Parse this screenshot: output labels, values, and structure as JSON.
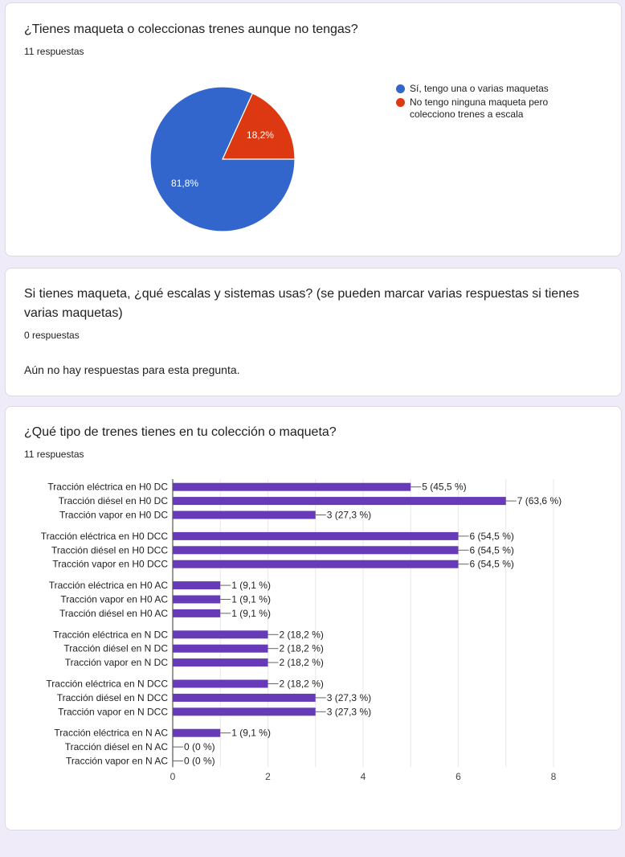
{
  "cards": [
    {
      "title": "¿Tienes maqueta o coleccionas trenes aunque no tengas?",
      "count": "11 respuestas"
    },
    {
      "title": "Si tienes maqueta, ¿qué escalas y sistemas usas? (se pueden marcar varias respuestas si tienes varias maquetas)",
      "count": "0 respuestas",
      "no_responses": "Aún no hay respuestas para esta pregunta."
    },
    {
      "title": "¿Qué tipo de trenes tienes en tu colección o maqueta?",
      "count": "11 respuestas"
    }
  ],
  "colors": {
    "blue": "#3366cc",
    "red": "#dc3912",
    "purple": "#673ab7",
    "grid": "#e8e8e8"
  },
  "chart_data": [
    {
      "type": "pie",
      "categories": [
        "Sí, tengo una o varias maquetas",
        "No tengo ninguna maqueta pero colecciono trenes a escala"
      ],
      "values": [
        81.8,
        18.2
      ],
      "data_labels": [
        "81,8%",
        "18,2%"
      ],
      "colors": [
        "#3366cc",
        "#dc3912"
      ],
      "legend": "right"
    },
    {
      "type": "bar",
      "orientation": "horizontal",
      "categories": [
        "Tracción eléctrica en H0 DC",
        "Tracción diésel en H0 DC",
        "Tracción vapor en H0 DC",
        "Tracción eléctrica en H0 DCC",
        "Tracción diésel en H0 DCC",
        "Tracción vapor en H0 DCC",
        "Tracción eléctrica en H0 AC",
        "Tracción vapor en H0 AC",
        "Tracción diésel en H0 AC",
        "Tracción eléctrica en N DC",
        "Tracción diésel en N DC",
        "Tracción vapor en N DC",
        "Tracción eléctrica en N DCC",
        "Tracción diésel en N DCC",
        "Tracción vapor en N DCC",
        "Tracción eléctrica en N AC",
        "Tracción diésel en N AC",
        "Tracción vapor en N AC"
      ],
      "values": [
        5,
        7,
        3,
        6,
        6,
        6,
        1,
        1,
        1,
        2,
        2,
        2,
        2,
        3,
        3,
        1,
        0,
        0
      ],
      "data_labels": [
        "5 (45,5 %)",
        "7 (63,6 %)",
        "3 (27,3 %)",
        "6 (54,5 %)",
        "6 (54,5 %)",
        "6 (54,5 %)",
        "1 (9,1 %)",
        "1 (9,1 %)",
        "1 (9,1 %)",
        "2 (18,2 %)",
        "2 (18,2 %)",
        "2 (18,2 %)",
        "2 (18,2 %)",
        "3 (27,3 %)",
        "3 (27,3 %)",
        "1 (9,1 %)",
        "0 (0 %)",
        "0 (0 %)"
      ],
      "xlim": [
        0,
        8
      ],
      "xticks": [
        "0",
        "2",
        "4",
        "6",
        "8"
      ],
      "grid": true,
      "color": "#673ab7"
    }
  ]
}
